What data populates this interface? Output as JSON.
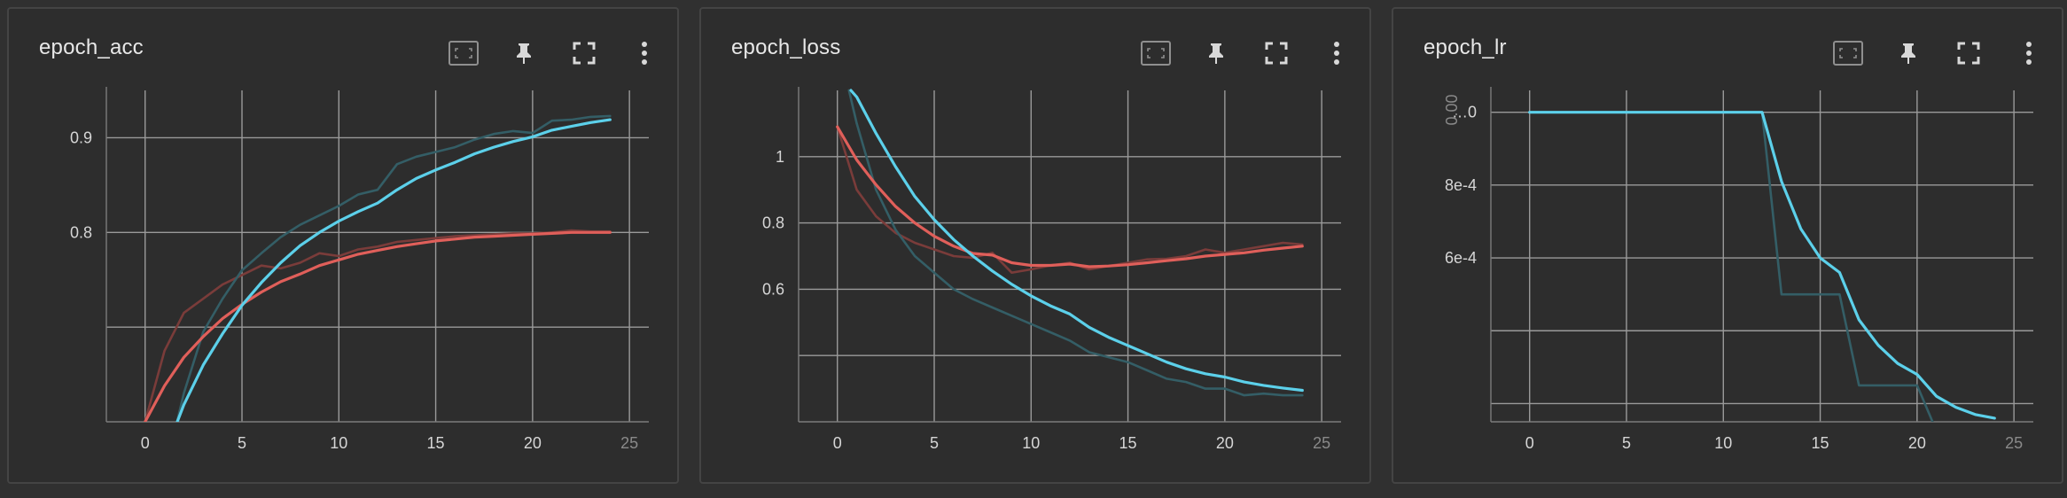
{
  "theme": {
    "background": "#303030",
    "card": "#2d2d2d",
    "grid": "#9a9a9a",
    "red": "#e05f5a",
    "cyan": "#5cd0ea",
    "raw_red": "#7a3c3a",
    "raw_cyan": "#345e66"
  },
  "toolbar_icons": [
    "fit-domain-icon",
    "pin-icon",
    "fullscreen-icon",
    "more-vert-icon"
  ],
  "charts": [
    {
      "title": "epoch_acc"
    },
    {
      "title": "epoch_loss"
    },
    {
      "title": "epoch_lr"
    }
  ],
  "chart_data": [
    {
      "type": "line",
      "title": "epoch_acc",
      "xlim": [
        -2,
        26
      ],
      "ylim": [
        0.6,
        0.95
      ],
      "xticks": [
        0,
        5,
        10,
        15,
        20,
        25
      ],
      "xticklabels": [
        "0",
        "5",
        "10",
        "15",
        "20",
        "25"
      ],
      "yticks": [
        0.9,
        0.8,
        0.7
      ],
      "yticklabels": [
        "0.9",
        "0.8",
        ""
      ],
      "grid": true,
      "series": [
        {
          "color": "#e05f5a",
          "smoothed": true,
          "x": [
            0,
            1,
            2,
            3,
            4,
            5,
            6,
            7,
            8,
            9,
            10,
            11,
            12,
            13,
            14,
            15,
            16,
            17,
            18,
            19,
            20,
            21,
            22,
            23,
            24
          ],
          "values": [
            0.6,
            0.638,
            0.668,
            0.69,
            0.709,
            0.724,
            0.737,
            0.748,
            0.756,
            0.765,
            0.771,
            0.777,
            0.781,
            0.785,
            0.788,
            0.791,
            0.793,
            0.795,
            0.796,
            0.797,
            0.798,
            0.799,
            0.8,
            0.8,
            0.8
          ]
        },
        {
          "color": "#7a3c3a",
          "smoothed": false,
          "x": [
            0,
            1,
            2,
            3,
            4,
            5,
            6,
            7,
            8,
            9,
            10,
            11,
            12,
            13,
            14,
            15,
            16,
            17,
            18,
            19,
            20,
            21,
            22,
            23,
            24
          ],
          "values": [
            0.6,
            0.675,
            0.715,
            0.73,
            0.745,
            0.755,
            0.765,
            0.762,
            0.768,
            0.778,
            0.775,
            0.782,
            0.785,
            0.79,
            0.792,
            0.794,
            0.796,
            0.797,
            0.798,
            0.799,
            0.799,
            0.8,
            0.802,
            0.801,
            0.801
          ]
        },
        {
          "color": "#5cd0ea",
          "smoothed": true,
          "x": [
            1,
            2,
            3,
            4,
            5,
            6,
            7,
            8,
            9,
            10,
            11,
            12,
            13,
            14,
            15,
            16,
            17,
            18,
            19,
            20,
            21,
            22,
            23,
            24
          ],
          "values": [
            0.565,
            0.618,
            0.66,
            0.693,
            0.723,
            0.747,
            0.768,
            0.786,
            0.8,
            0.812,
            0.822,
            0.831,
            0.845,
            0.857,
            0.866,
            0.874,
            0.883,
            0.89,
            0.896,
            0.901,
            0.908,
            0.912,
            0.916,
            0.919
          ]
        },
        {
          "color": "#345e66",
          "smoothed": false,
          "x": [
            1,
            2,
            3,
            4,
            5,
            6,
            7,
            8,
            9,
            10,
            11,
            12,
            13,
            14,
            15,
            16,
            17,
            18,
            19,
            20,
            21,
            22,
            23,
            24
          ],
          "values": [
            0.545,
            0.63,
            0.695,
            0.73,
            0.76,
            0.778,
            0.795,
            0.808,
            0.818,
            0.828,
            0.84,
            0.845,
            0.872,
            0.88,
            0.885,
            0.89,
            0.898,
            0.904,
            0.907,
            0.905,
            0.918,
            0.919,
            0.922,
            0.923
          ]
        }
      ]
    },
    {
      "type": "line",
      "title": "epoch_loss",
      "xlim": [
        -2,
        26
      ],
      "ylim": [
        0.2,
        1.2
      ],
      "xticks": [
        0,
        5,
        10,
        15,
        20,
        25
      ],
      "xticklabels": [
        "0",
        "5",
        "10",
        "15",
        "20",
        "25"
      ],
      "yticks": [
        1.0,
        0.8,
        0.6,
        0.4
      ],
      "yticklabels": [
        "1",
        "0.8",
        "0.6",
        ""
      ],
      "grid": true,
      "series": [
        {
          "color": "#e05f5a",
          "smoothed": true,
          "x": [
            0,
            1,
            2,
            3,
            4,
            5,
            6,
            7,
            8,
            9,
            10,
            11,
            12,
            13,
            14,
            15,
            16,
            17,
            18,
            19,
            20,
            21,
            22,
            23,
            24
          ],
          "values": [
            1.09,
            0.99,
            0.915,
            0.85,
            0.8,
            0.76,
            0.73,
            0.708,
            0.703,
            0.68,
            0.672,
            0.672,
            0.676,
            0.668,
            0.67,
            0.674,
            0.68,
            0.686,
            0.692,
            0.7,
            0.705,
            0.71,
            0.718,
            0.724,
            0.73
          ]
        },
        {
          "color": "#7a3c3a",
          "smoothed": false,
          "x": [
            0,
            1,
            2,
            3,
            4,
            5,
            6,
            7,
            8,
            9,
            10,
            11,
            12,
            13,
            14,
            15,
            16,
            17,
            18,
            19,
            20,
            21,
            22,
            23,
            24
          ],
          "values": [
            1.09,
            0.9,
            0.82,
            0.77,
            0.74,
            0.72,
            0.7,
            0.695,
            0.71,
            0.65,
            0.66,
            0.672,
            0.68,
            0.66,
            0.67,
            0.68,
            0.69,
            0.692,
            0.7,
            0.72,
            0.71,
            0.72,
            0.73,
            0.74,
            0.735
          ]
        },
        {
          "color": "#5cd0ea",
          "smoothed": true,
          "x": [
            0.7,
            1,
            2,
            3,
            4,
            5,
            6,
            7,
            8,
            9,
            10,
            11,
            12,
            13,
            14,
            15,
            16,
            17,
            18,
            19,
            20,
            21,
            22,
            23,
            24
          ],
          "values": [
            1.2,
            1.18,
            1.07,
            0.97,
            0.88,
            0.81,
            0.75,
            0.7,
            0.655,
            0.615,
            0.58,
            0.55,
            0.525,
            0.485,
            0.455,
            0.43,
            0.405,
            0.38,
            0.36,
            0.345,
            0.335,
            0.32,
            0.31,
            0.302,
            0.295
          ]
        },
        {
          "color": "#345e66",
          "smoothed": false,
          "x": [
            0.6,
            1,
            2,
            3,
            4,
            5,
            6,
            7,
            8,
            9,
            10,
            11,
            12,
            13,
            14,
            15,
            16,
            17,
            18,
            19,
            20,
            21,
            22,
            23,
            24
          ],
          "values": [
            1.2,
            1.1,
            0.9,
            0.78,
            0.7,
            0.65,
            0.6,
            0.57,
            0.545,
            0.52,
            0.495,
            0.47,
            0.445,
            0.41,
            0.395,
            0.38,
            0.355,
            0.33,
            0.32,
            0.3,
            0.3,
            0.28,
            0.285,
            0.28,
            0.28
          ]
        }
      ]
    },
    {
      "type": "line",
      "title": "epoch_lr",
      "xlim": [
        -2,
        26
      ],
      "ylim": [
        0.00015,
        0.00106
      ],
      "xticks": [
        0,
        5,
        10,
        15,
        20,
        25
      ],
      "xticklabels": [
        "0",
        "5",
        "10",
        "15",
        "20",
        "25"
      ],
      "yticks": [
        0.001,
        0.0008,
        0.0006,
        0.0004,
        0.0002
      ],
      "yticklabels": [
        "…0",
        "8e-4",
        "6e-4",
        "",
        ""
      ],
      "ytick_extra": "0.00",
      "grid": true,
      "series": [
        {
          "color": "#5cd0ea",
          "smoothed": true,
          "x": [
            0,
            1,
            2,
            3,
            4,
            5,
            6,
            7,
            8,
            9,
            10,
            11,
            12,
            13,
            14,
            15,
            16,
            17,
            18,
            19,
            20,
            21,
            22,
            23,
            24
          ],
          "values": [
            0.001,
            0.001,
            0.001,
            0.001,
            0.001,
            0.001,
            0.001,
            0.001,
            0.001,
            0.001,
            0.001,
            0.001,
            0.001,
            0.00081,
            0.00068,
            0.0006,
            0.00056,
            0.00043,
            0.00036,
            0.00031,
            0.00028,
            0.00022,
            0.00019,
            0.00017,
            0.00016
          ]
        },
        {
          "color": "#345e66",
          "smoothed": false,
          "x": [
            0,
            1,
            2,
            3,
            4,
            5,
            6,
            7,
            8,
            9,
            10,
            11,
            12,
            13,
            14,
            15,
            16,
            17,
            18,
            19,
            20,
            21,
            22,
            23,
            24
          ],
          "values": [
            0.001,
            0.001,
            0.001,
            0.001,
            0.001,
            0.001,
            0.001,
            0.001,
            0.001,
            0.001,
            0.001,
            0.001,
            0.001,
            0.0005,
            0.0005,
            0.0005,
            0.0005,
            0.00025,
            0.00025,
            0.00025,
            0.00025,
            0.000125,
            0.000125,
            0.000125,
            0.000125
          ]
        }
      ]
    }
  ]
}
